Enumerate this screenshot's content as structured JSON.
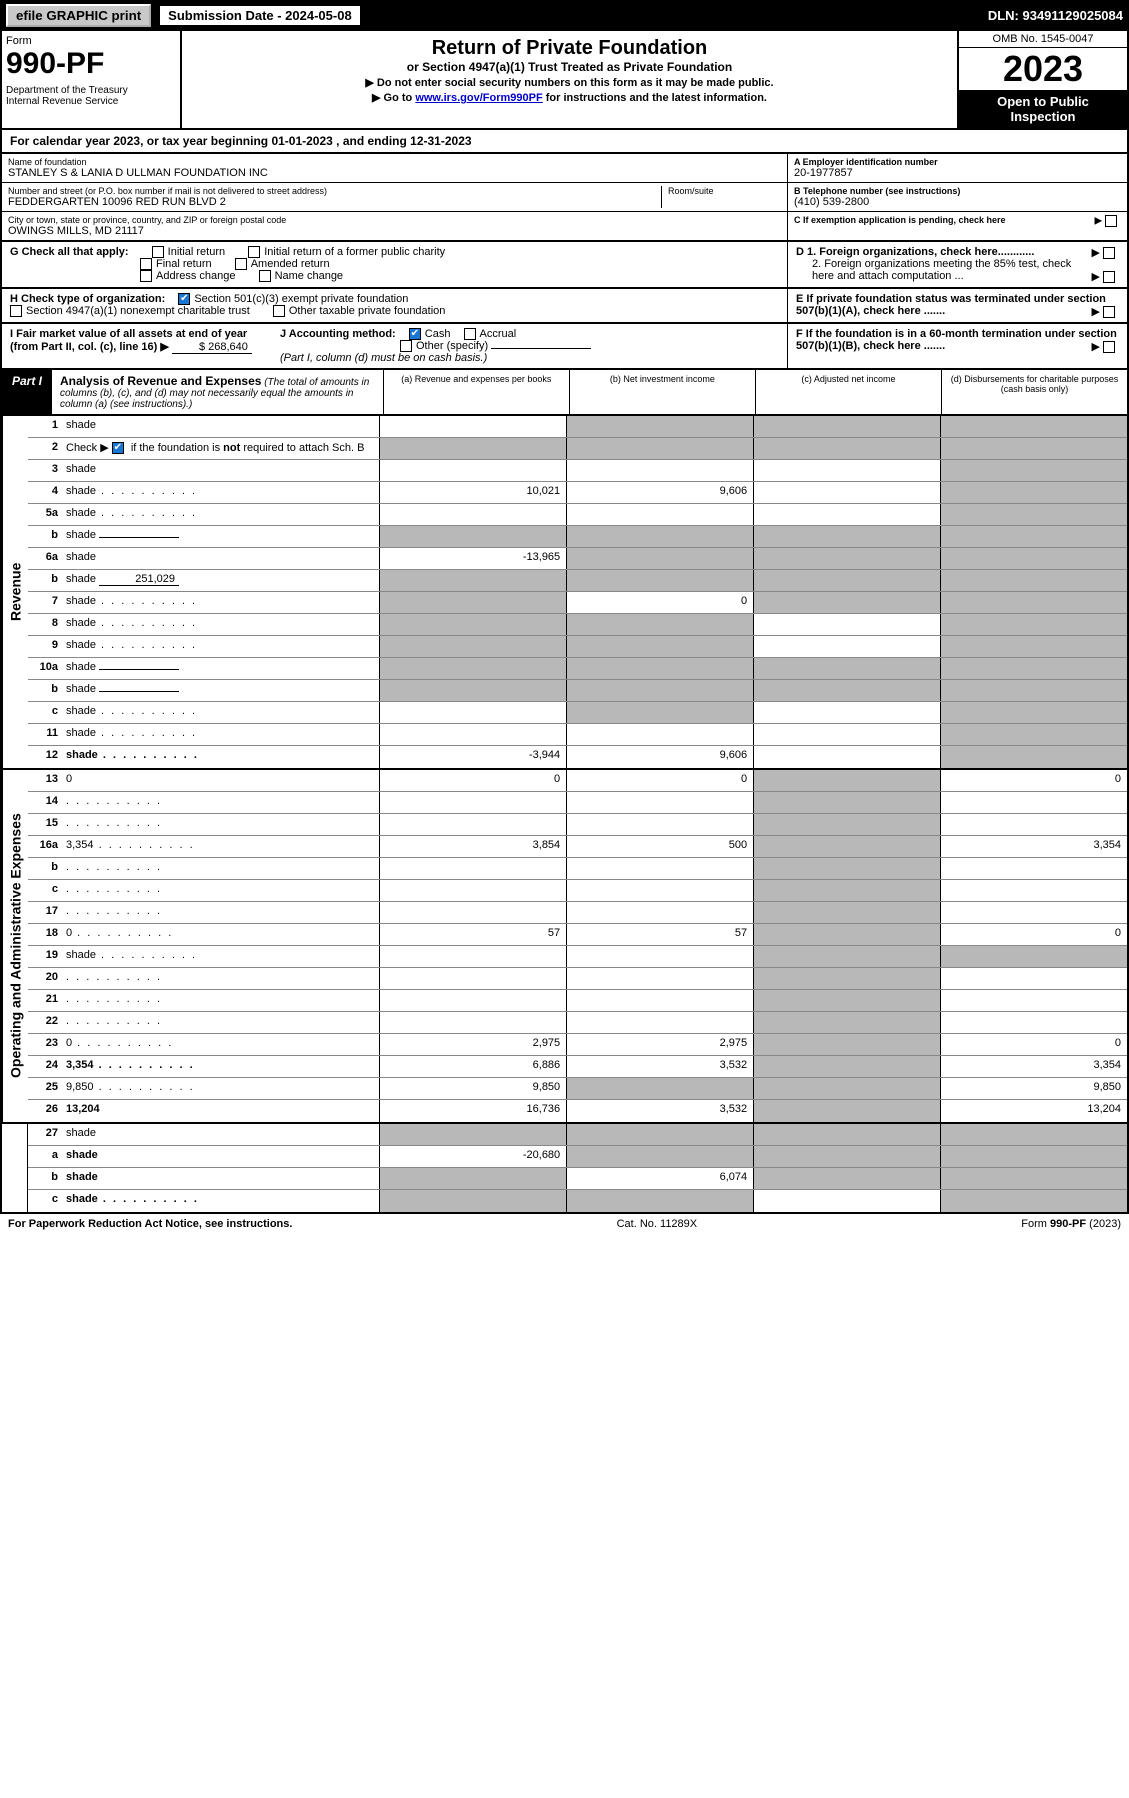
{
  "colors": {
    "black": "#000000",
    "white": "#ffffff",
    "shade": "#b8b8b8",
    "link": "#0000cc",
    "check_green": "#1976d2",
    "button_gray": "#c8c8c8"
  },
  "topbar": {
    "efile_label": "efile GRAPHIC print",
    "sub_date": "Submission Date - 2024-05-08",
    "dln": "DLN: 93491129025084"
  },
  "header": {
    "form_word": "Form",
    "form_code": "990-PF",
    "dept": "Department of the Treasury\nInternal Revenue Service",
    "title": "Return of Private Foundation",
    "subtitle": "or Section 4947(a)(1) Trust Treated as Private Foundation",
    "note1": "▶ Do not enter social security numbers on this form as it may be made public.",
    "note2_pre": "▶ Go to ",
    "note2_link": "www.irs.gov/Form990PF",
    "note2_post": " for instructions and the latest information.",
    "omb": "OMB No. 1545-0047",
    "year": "2023",
    "open": "Open to Public Inspection"
  },
  "calyear": "For calendar year 2023, or tax year beginning 01-01-2023            , and ending 12-31-2023",
  "ident": {
    "name_lbl": "Name of foundation",
    "name": "STANLEY S & LANIA D ULLMAN FOUNDATION INC",
    "addr_lbl": "Number and street (or P.O. box number if mail is not delivered to street address)",
    "addr": "FEDDERGARTEN 10096 RED RUN BLVD 2",
    "room_lbl": "Room/suite",
    "city_lbl": "City or town, state or province, country, and ZIP or foreign postal code",
    "city": "OWINGS MILLS, MD  21117",
    "ein_lbl": "A Employer identification number",
    "ein": "20-1977857",
    "tel_lbl": "B Telephone number (see instructions)",
    "tel": "(410) 539-2800",
    "c_lbl": "C If exemption application is pending, check here"
  },
  "checks": {
    "g_lbl": "G Check all that apply:",
    "g_items": [
      "Initial return",
      "Initial return of a former public charity",
      "Final return",
      "Amended return",
      "Address change",
      "Name change"
    ],
    "d1": "D 1. Foreign organizations, check here............",
    "d2": "2. Foreign organizations meeting the 85% test, check here and attach computation ...",
    "h_lbl": "H Check type of organization:",
    "h_501": "Section 501(c)(3) exempt private foundation",
    "h_4947": "Section 4947(a)(1) nonexempt charitable trust",
    "h_other": "Other taxable private foundation",
    "e_lbl": "E  If private foundation status was terminated under section 507(b)(1)(A), check here .......",
    "i_lbl": "I Fair market value of all assets at end of year (from Part II, col. (c), line 16) ▶",
    "i_val": "$  268,640",
    "j_lbl": "J Accounting method:",
    "j_cash": "Cash",
    "j_accr": "Accrual",
    "j_other": "Other (specify)",
    "j_note": "(Part I, column (d) must be on cash basis.)",
    "f_lbl": "F  If the foundation is in a 60-month termination under section 507(b)(1)(B), check here ......."
  },
  "part1": {
    "label": "Part I",
    "title": "Analysis of Revenue and Expenses",
    "note": "(The total of amounts in columns (b), (c), and (d) may not necessarily equal the amounts in column (a) (see instructions).)",
    "cols": {
      "a": "(a)   Revenue and expenses per books",
      "b": "(b)   Net investment income",
      "c": "(c)   Adjusted net income",
      "d": "(d)   Disbursements for charitable purposes (cash basis only)"
    }
  },
  "side_labels": {
    "rev": "Revenue",
    "exp": "Operating and Administrative Expenses"
  },
  "rows": [
    {
      "n": "1",
      "d": "shade",
      "a": "",
      "b": "shade",
      "c": "shade"
    },
    {
      "n": "2",
      "d": "shade",
      "bold_not": true,
      "a": "shade",
      "b": "shade",
      "c": "shade"
    },
    {
      "n": "3",
      "d": "shade",
      "a": "",
      "b": "",
      "c": ""
    },
    {
      "n": "4",
      "d": "shade",
      "dots": true,
      "a": "10,021",
      "b": "9,606",
      "c": ""
    },
    {
      "n": "5a",
      "d": "shade",
      "dots": true,
      "a": "",
      "b": "",
      "c": ""
    },
    {
      "n": "b",
      "d": "shade",
      "inline": "",
      "a": "shade",
      "b": "shade",
      "c": "shade"
    },
    {
      "n": "6a",
      "d": "shade",
      "a": "-13,965",
      "b": "shade",
      "c": "shade"
    },
    {
      "n": "b",
      "d": "shade",
      "inline": "251,029",
      "a": "shade",
      "b": "shade",
      "c": "shade"
    },
    {
      "n": "7",
      "d": "shade",
      "dots": true,
      "a": "shade",
      "b": "0",
      "c": "shade"
    },
    {
      "n": "8",
      "d": "shade",
      "dots": true,
      "a": "shade",
      "b": "shade",
      "c": ""
    },
    {
      "n": "9",
      "d": "shade",
      "dots": true,
      "a": "shade",
      "b": "shade",
      "c": ""
    },
    {
      "n": "10a",
      "d": "shade",
      "inline": "",
      "a": "shade",
      "b": "shade",
      "c": "shade"
    },
    {
      "n": "b",
      "d": "shade",
      "inline": "",
      "dots": true,
      "a": "shade",
      "b": "shade",
      "c": "shade"
    },
    {
      "n": "c",
      "d": "shade",
      "dots": true,
      "a": "",
      "b": "shade",
      "c": ""
    },
    {
      "n": "11",
      "d": "shade",
      "dots": true,
      "a": "",
      "b": "",
      "c": ""
    },
    {
      "n": "12",
      "d": "shade",
      "bold": true,
      "dots": true,
      "a": "-3,944",
      "b": "9,606",
      "c": ""
    }
  ],
  "exp_rows": [
    {
      "n": "13",
      "d": "0",
      "a": "0",
      "b": "0",
      "c": "shade"
    },
    {
      "n": "14",
      "d": "",
      "dots": true,
      "a": "",
      "b": "",
      "c": "shade"
    },
    {
      "n": "15",
      "d": "",
      "dots": true,
      "a": "",
      "b": "",
      "c": "shade"
    },
    {
      "n": "16a",
      "d": "3,354",
      "dots": true,
      "a": "3,854",
      "b": "500",
      "c": "shade"
    },
    {
      "n": "b",
      "d": "",
      "dots": true,
      "a": "",
      "b": "",
      "c": "shade"
    },
    {
      "n": "c",
      "d": "",
      "dots": true,
      "a": "",
      "b": "",
      "c": "shade"
    },
    {
      "n": "17",
      "d": "",
      "dots": true,
      "a": "",
      "b": "",
      "c": "shade"
    },
    {
      "n": "18",
      "d": "0",
      "dots": true,
      "a": "57",
      "b": "57",
      "c": "shade"
    },
    {
      "n": "19",
      "d": "shade",
      "dots": true,
      "a": "",
      "b": "",
      "c": "shade"
    },
    {
      "n": "20",
      "d": "",
      "dots": true,
      "a": "",
      "b": "",
      "c": "shade"
    },
    {
      "n": "21",
      "d": "",
      "dots": true,
      "a": "",
      "b": "",
      "c": "shade"
    },
    {
      "n": "22",
      "d": "",
      "dots": true,
      "a": "",
      "b": "",
      "c": "shade"
    },
    {
      "n": "23",
      "d": "0",
      "dots": true,
      "a": "2,975",
      "b": "2,975",
      "c": "shade"
    },
    {
      "n": "24",
      "d": "3,354",
      "bold": true,
      "dots": true,
      "a": "6,886",
      "b": "3,532",
      "c": "shade"
    },
    {
      "n": "25",
      "d": "9,850",
      "dots": true,
      "a": "9,850",
      "b": "shade",
      "c": "shade"
    },
    {
      "n": "26",
      "d": "13,204",
      "bold": true,
      "a": "16,736",
      "b": "3,532",
      "c": "shade"
    }
  ],
  "final_rows": [
    {
      "n": "27",
      "d": "shade",
      "a": "shade",
      "b": "shade",
      "c": "shade"
    },
    {
      "n": "a",
      "d": "shade",
      "bold": true,
      "a": "-20,680",
      "b": "shade",
      "c": "shade"
    },
    {
      "n": "b",
      "d": "shade",
      "bold": true,
      "a": "shade",
      "b": "6,074",
      "c": "shade"
    },
    {
      "n": "c",
      "d": "shade",
      "bold": true,
      "dots": true,
      "a": "shade",
      "b": "shade",
      "c": ""
    }
  ],
  "footer": {
    "left": "For Paperwork Reduction Act Notice, see instructions.",
    "mid": "Cat. No. 11289X",
    "right": "Form 990-PF (2023)"
  }
}
